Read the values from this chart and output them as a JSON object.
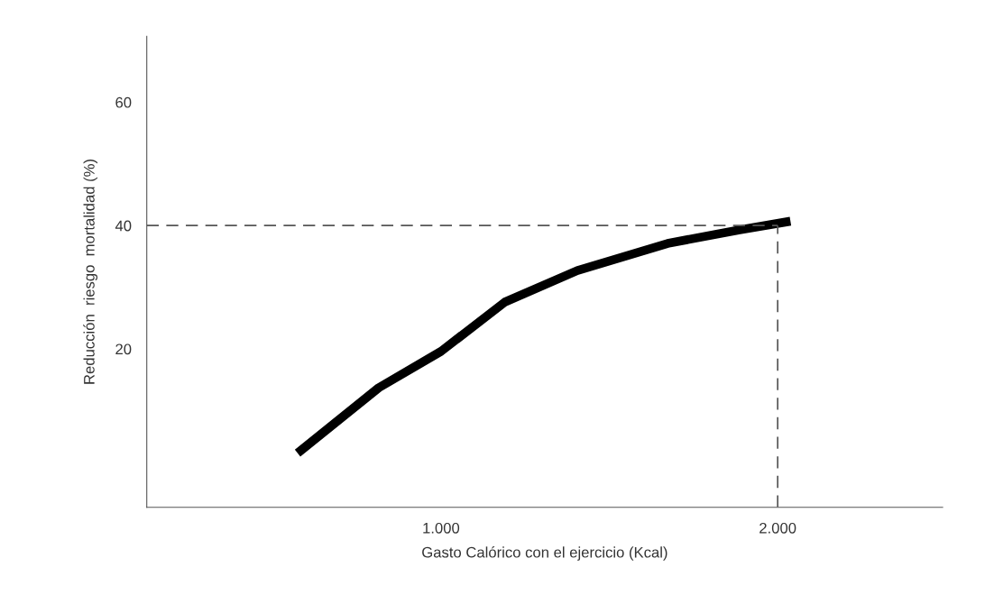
{
  "chart_data": {
    "type": "line",
    "xlabel": "Gasto Calórico con el ejercicio (Kcal)",
    "ylabel": "Reducción  riesgo  mortalidad (%)",
    "series": [
      {
        "color": "#000000",
        "x": [
          574,
          815,
          1000,
          1190,
          1405,
          1673,
          1887,
          2038
        ],
        "values": [
          3.1,
          13.7,
          19.6,
          27.6,
          32.7,
          37.1,
          39.3,
          40.7
        ]
      }
    ],
    "xlim": [
      126,
      2490
    ],
    "ylim": [
      -5.7,
      70.7
    ],
    "xticks": [
      {
        "value": 1000,
        "label": "1.000"
      },
      {
        "value": 2000,
        "label": "2.000"
      }
    ],
    "yticks": [
      20,
      40,
      60
    ],
    "ref_lines": [
      {
        "axis": "y",
        "value": 40,
        "color": "#555555",
        "line_style": "dashed"
      },
      {
        "axis": "x",
        "value": 2000,
        "color": "#555555",
        "line_style": "dashed"
      }
    ],
    "grid": false,
    "legend": false,
    "marker": "none",
    "line_style": "solid"
  }
}
